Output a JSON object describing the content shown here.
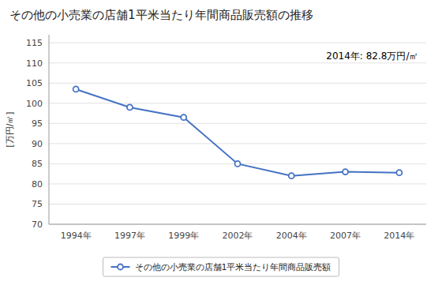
{
  "chart_data": {
    "type": "line",
    "title": "その他の小売業の店舗1平米当たり年間商品販売額の推移",
    "ylabel": "[万円/㎡]",
    "categories": [
      "1994年",
      "1997年",
      "1999年",
      "2002年",
      "2004年",
      "2007年",
      "2014年"
    ],
    "series": [
      {
        "name": "その他の小売業の店舗1平米当たり年間商品販売額",
        "color": "#4472C4",
        "values": [
          103.5,
          99.0,
          96.5,
          85.0,
          82.0,
          83.0,
          82.8
        ]
      }
    ],
    "ylim": [
      70,
      117
    ],
    "yticks": [
      70,
      75,
      80,
      85,
      90,
      95,
      100,
      105,
      110,
      115
    ],
    "annotation": "2014年: 82.8万円/㎡",
    "grid": true,
    "legend": "bottom",
    "marker": "circle"
  }
}
